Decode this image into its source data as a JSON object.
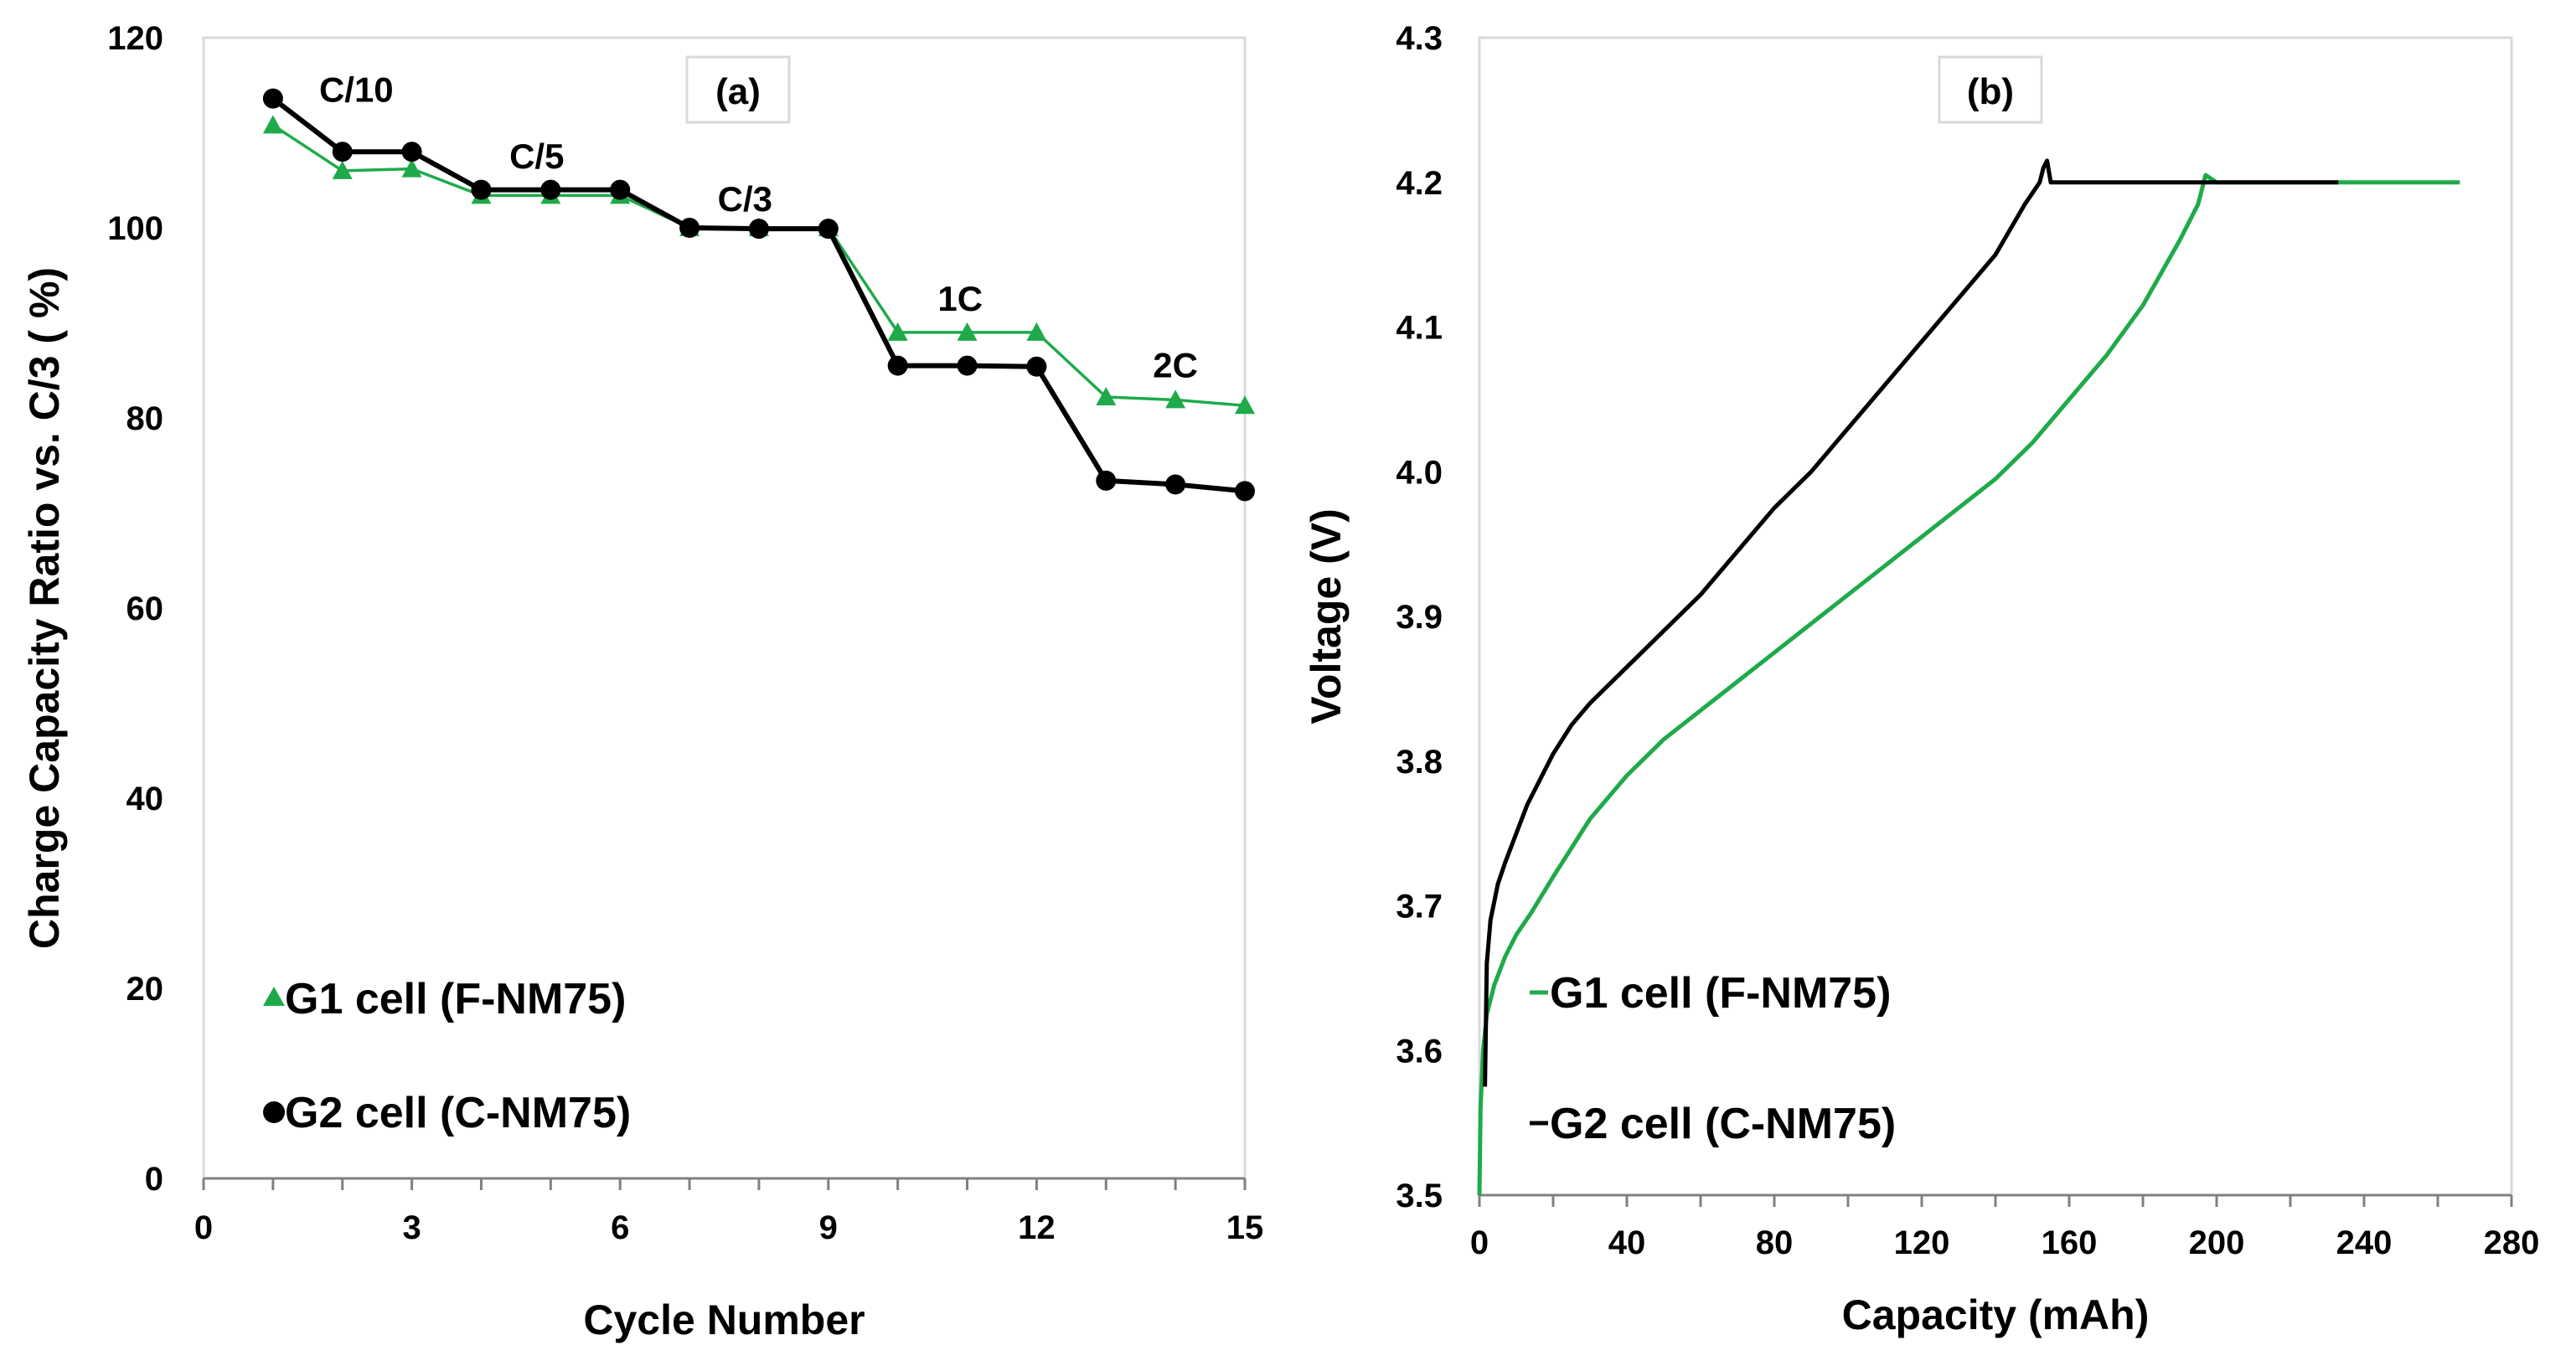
{
  "colors": {
    "g1": "#1faa4a",
    "g2": "#000000",
    "axis": "#808080",
    "frame": "#d9d9d9"
  },
  "chart_data": [
    {
      "type": "line",
      "panel_label": "(a)",
      "xlabel": "Cycle Number",
      "ylabel": "Charge Capacity Ratio vs. C/3 ( %)",
      "xlim": [
        0,
        15
      ],
      "ylim": [
        0,
        120
      ],
      "xticks": [
        0,
        3,
        6,
        9,
        12,
        15
      ],
      "yticks": [
        0,
        20,
        40,
        60,
        80,
        100,
        120
      ],
      "grid": false,
      "legend_position": "bottom-left",
      "series": [
        {
          "name": "G1 cell (F-NM75)",
          "color": "#1faa4a",
          "marker": "triangle",
          "x": [
            1,
            2,
            3,
            4,
            5,
            6,
            7,
            8,
            9,
            10,
            11,
            12,
            13,
            14,
            15
          ],
          "y": [
            110.8,
            106,
            106.2,
            103.4,
            103.4,
            103.4,
            100,
            100,
            100,
            89,
            89,
            89,
            82.2,
            81.9,
            81.3
          ]
        },
        {
          "name": "G2 cell (C-NM75)",
          "color": "#000000",
          "marker": "circle",
          "x": [
            1,
            2,
            3,
            4,
            5,
            6,
            7,
            8,
            9,
            10,
            11,
            12,
            13,
            14,
            15
          ],
          "y": [
            113.6,
            108,
            108,
            104,
            104,
            104,
            100,
            99.9,
            99.9,
            85.5,
            85.5,
            85.4,
            73.4,
            73,
            72.3
          ]
        }
      ],
      "annotations": [
        {
          "text": "C/10",
          "x": 2.2,
          "y": 114.5
        },
        {
          "text": "C/5",
          "x": 4.8,
          "y": 107.5
        },
        {
          "text": "C/3",
          "x": 7.8,
          "y": 103
        },
        {
          "text": "1C",
          "x": 10.9,
          "y": 92.5
        },
        {
          "text": "2C",
          "x": 14.0,
          "y": 85.5
        }
      ]
    },
    {
      "type": "line",
      "panel_label": "(b)",
      "xlabel": "Capacity (mAh)",
      "ylabel": "Voltage (V)",
      "xlim": [
        0,
        280
      ],
      "ylim": [
        3.5,
        4.3
      ],
      "xticks": [
        0,
        40,
        80,
        120,
        160,
        200,
        240,
        280
      ],
      "yticks": [
        "3.5",
        "3.6",
        "3.7",
        "3.8",
        "3.9",
        "4.0",
        "4.1",
        "4.2",
        "4.3"
      ],
      "grid": false,
      "legend_position": "bottom-left",
      "series": [
        {
          "name": "G1 cell (F-NM75)",
          "color": "#1faa4a",
          "x": [
            0,
            0.3,
            1,
            2,
            4,
            7,
            10,
            14,
            20,
            25,
            30,
            40,
            50,
            60,
            70,
            80,
            90,
            100,
            110,
            120,
            130,
            140,
            150,
            160,
            170,
            180,
            190,
            195,
            197,
            200,
            230,
            266
          ],
          "y": [
            3.5,
            3.56,
            3.6,
            3.625,
            3.645,
            3.665,
            3.68,
            3.695,
            3.72,
            3.74,
            3.76,
            3.79,
            3.815,
            3.835,
            3.855,
            3.875,
            3.895,
            3.915,
            3.935,
            3.955,
            3.975,
            3.995,
            4.02,
            4.05,
            4.08,
            4.115,
            4.16,
            4.185,
            4.205,
            4.2,
            4.2,
            4.2
          ]
        },
        {
          "name": "G2 cell (C-NM75)",
          "color": "#000000",
          "x": [
            1.5,
            2,
            3,
            5,
            7,
            10,
            13,
            17,
            20,
            25,
            30,
            40,
            50,
            60,
            70,
            80,
            90,
            100,
            110,
            120,
            130,
            140,
            148,
            152,
            153,
            154,
            155,
            156,
            157,
            160,
            200,
            233
          ],
          "y": [
            3.575,
            3.66,
            3.69,
            3.715,
            3.73,
            3.75,
            3.77,
            3.79,
            3.805,
            3.825,
            3.84,
            3.865,
            3.89,
            3.915,
            3.945,
            3.975,
            4.0,
            4.03,
            4.06,
            4.09,
            4.12,
            4.15,
            4.185,
            4.2,
            4.21,
            4.215,
            4.2,
            4.2,
            4.2,
            4.2,
            4.2,
            4.2
          ]
        }
      ]
    }
  ]
}
